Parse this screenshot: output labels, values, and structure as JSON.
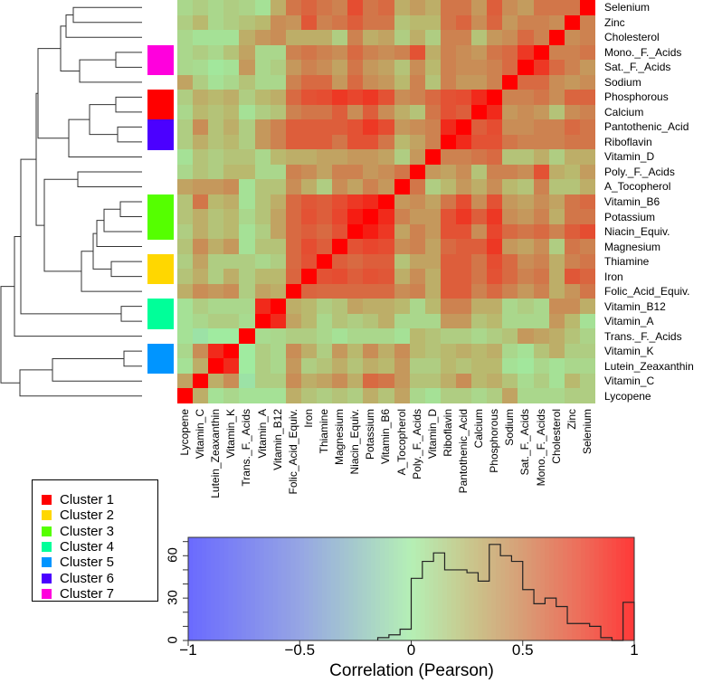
{
  "chart_data": {
    "type": "heatmap",
    "title": "",
    "row_labels": [
      "Selenium",
      "Zinc",
      "Cholesterol",
      "Mono._F._Acids",
      "Sat._F._Acids",
      "Sodium",
      "Phosphorous",
      "Calcium",
      "Pantothenic_Acid",
      "Riboflavin",
      "Vitamin_D",
      "Poly._F._Acids",
      "A_Tocopherol",
      "Vitamin_B6",
      "Potassium",
      "Niacin_Equiv.",
      "Magnesium",
      "Thiamine",
      "Iron",
      "Folic_Acid_Equiv.",
      "Vitamin_B12",
      "Vitamin_A",
      "Trans._F._Acids",
      "Vitamin_K",
      "Lutein_Zeaxanthin",
      "Vitamin_C",
      "Lycopene"
    ],
    "col_labels": [
      "Lycopene",
      "Vitamin_C",
      "Lutein_Zeaxanthin",
      "Vitamin_K",
      "Trans._F._Acids",
      "Vitamin_A",
      "Vitamin_B12",
      "Folic_Acid_Equiv.",
      "Iron",
      "Thiamine",
      "Magnesium",
      "Niacin_Equiv.",
      "Potassium",
      "Vitamin_B6",
      "A_Tocopherol",
      "Poly._F._Acids",
      "Vitamin_D",
      "Riboflavin",
      "Pantothenic_Acid",
      "Calcium",
      "Phosphorous",
      "Sodium",
      "Sat._F._Acids",
      "Mono._F._Acids",
      "Cholesterol",
      "Zinc",
      "Selenium"
    ],
    "values": [
      [
        0.1,
        0.15,
        0.1,
        0.15,
        0.12,
        0.05,
        0.3,
        0.55,
        0.62,
        0.55,
        0.5,
        0.72,
        0.55,
        0.6,
        0.3,
        0.38,
        0.3,
        0.55,
        0.55,
        0.4,
        0.65,
        0.45,
        0.38,
        0.55,
        0.55,
        0.55,
        1.0
      ],
      [
        0.15,
        0.25,
        0.1,
        0.15,
        0.2,
        0.25,
        0.45,
        0.42,
        0.68,
        0.5,
        0.55,
        0.65,
        0.55,
        0.55,
        0.2,
        0.25,
        0.25,
        0.55,
        0.62,
        0.45,
        0.62,
        0.4,
        0.5,
        0.5,
        0.45,
        1.0,
        0.5
      ],
      [
        0.1,
        0.05,
        0.05,
        0.05,
        0.3,
        0.4,
        0.45,
        0.3,
        0.3,
        0.3,
        0.15,
        0.5,
        0.3,
        0.35,
        0.15,
        0.3,
        0.15,
        0.5,
        0.5,
        0.2,
        0.4,
        0.45,
        0.6,
        0.5,
        1.0,
        0.45,
        0.5
      ],
      [
        0.1,
        0.15,
        0.1,
        0.2,
        0.35,
        0.1,
        0.1,
        0.5,
        0.55,
        0.5,
        0.45,
        0.6,
        0.5,
        0.45,
        0.5,
        0.7,
        0.3,
        0.5,
        0.45,
        0.4,
        0.55,
        0.6,
        0.8,
        1.0,
        0.5,
        0.5,
        0.55
      ],
      [
        0.1,
        0.08,
        0.02,
        0.05,
        0.4,
        0.1,
        0.15,
        0.4,
        0.5,
        0.45,
        0.35,
        0.55,
        0.4,
        0.35,
        0.2,
        0.45,
        0.25,
        0.5,
        0.45,
        0.45,
        0.5,
        0.6,
        1.0,
        0.8,
        0.6,
        0.5,
        0.4
      ],
      [
        0.35,
        0.15,
        0.05,
        0.1,
        0.2,
        0.1,
        0.1,
        0.5,
        0.6,
        0.6,
        0.4,
        0.6,
        0.45,
        0.4,
        0.25,
        0.5,
        0.2,
        0.5,
        0.4,
        0.4,
        0.5,
        1.0,
        0.6,
        0.6,
        0.45,
        0.4,
        0.45
      ],
      [
        0.15,
        0.3,
        0.25,
        0.3,
        0.15,
        0.25,
        0.3,
        0.6,
        0.7,
        0.72,
        0.8,
        0.75,
        0.8,
        0.7,
        0.45,
        0.5,
        0.6,
        0.7,
        0.72,
        0.85,
        1.0,
        0.5,
        0.5,
        0.55,
        0.45,
        0.62,
        0.62
      ],
      [
        0.1,
        0.25,
        0.2,
        0.25,
        0.05,
        0.15,
        0.2,
        0.5,
        0.55,
        0.55,
        0.65,
        0.45,
        0.65,
        0.45,
        0.3,
        0.2,
        0.55,
        0.7,
        0.65,
        1.0,
        0.85,
        0.4,
        0.45,
        0.4,
        0.2,
        0.45,
        0.5
      ],
      [
        0.15,
        0.45,
        0.2,
        0.3,
        0.15,
        0.4,
        0.5,
        0.65,
        0.65,
        0.65,
        0.65,
        0.7,
        0.8,
        0.72,
        0.4,
        0.45,
        0.5,
        0.85,
        1.0,
        0.65,
        0.72,
        0.45,
        0.45,
        0.5,
        0.5,
        0.6,
        0.55
      ],
      [
        0.15,
        0.3,
        0.2,
        0.25,
        0.15,
        0.4,
        0.5,
        0.65,
        0.65,
        0.65,
        0.55,
        0.7,
        0.7,
        0.55,
        0.25,
        0.35,
        0.5,
        1.0,
        0.85,
        0.7,
        0.7,
        0.55,
        0.5,
        0.5,
        0.5,
        0.55,
        0.55
      ],
      [
        0.05,
        0.2,
        0.15,
        0.2,
        0.2,
        0.1,
        0.25,
        0.3,
        0.3,
        0.35,
        0.35,
        0.4,
        0.4,
        0.35,
        0.15,
        0.4,
        1.0,
        0.5,
        0.5,
        0.55,
        0.6,
        0.2,
        0.2,
        0.3,
        0.15,
        0.3,
        0.3
      ],
      [
        0.1,
        0.2,
        0.15,
        0.25,
        0.25,
        0.1,
        0.1,
        0.5,
        0.45,
        0.35,
        0.5,
        0.5,
        0.4,
        0.45,
        0.55,
        1.0,
        0.4,
        0.35,
        0.45,
        0.2,
        0.5,
        0.5,
        0.45,
        0.7,
        0.3,
        0.25,
        0.38
      ],
      [
        0.35,
        0.4,
        0.4,
        0.45,
        0.05,
        0.2,
        0.2,
        0.45,
        0.3,
        0.15,
        0.45,
        0.35,
        0.5,
        0.4,
        1.0,
        0.55,
        0.15,
        0.25,
        0.4,
        0.3,
        0.45,
        0.25,
        0.2,
        0.5,
        0.2,
        0.2,
        0.3
      ],
      [
        0.2,
        0.55,
        0.25,
        0.3,
        0.05,
        0.2,
        0.3,
        0.6,
        0.68,
        0.65,
        0.72,
        0.8,
        0.85,
        1.0,
        0.4,
        0.45,
        0.35,
        0.55,
        0.72,
        0.45,
        0.7,
        0.4,
        0.35,
        0.45,
        0.35,
        0.55,
        0.6
      ],
      [
        0.2,
        0.3,
        0.2,
        0.25,
        0.1,
        0.2,
        0.35,
        0.6,
        0.7,
        0.65,
        0.75,
        0.9,
        1.0,
        0.85,
        0.5,
        0.4,
        0.4,
        0.7,
        0.8,
        0.65,
        0.8,
        0.45,
        0.4,
        0.5,
        0.3,
        0.55,
        0.55
      ],
      [
        0.15,
        0.3,
        0.2,
        0.25,
        0.05,
        0.15,
        0.35,
        0.6,
        0.65,
        0.6,
        0.7,
        1.0,
        0.9,
        0.8,
        0.35,
        0.5,
        0.4,
        0.7,
        0.7,
        0.45,
        0.75,
        0.6,
        0.55,
        0.6,
        0.5,
        0.65,
        0.72
      ],
      [
        0.2,
        0.45,
        0.3,
        0.4,
        0.05,
        0.2,
        0.2,
        0.6,
        0.72,
        0.65,
        1.0,
        0.7,
        0.75,
        0.72,
        0.45,
        0.5,
        0.35,
        0.6,
        0.65,
        0.65,
        0.8,
        0.4,
        0.35,
        0.45,
        0.15,
        0.55,
        0.5
      ],
      [
        0.15,
        0.35,
        0.15,
        0.15,
        0.15,
        0.1,
        0.15,
        0.6,
        0.7,
        1.0,
        0.65,
        0.6,
        0.65,
        0.65,
        0.2,
        0.35,
        0.35,
        0.65,
        0.65,
        0.55,
        0.72,
        0.6,
        0.45,
        0.5,
        0.3,
        0.5,
        0.55
      ],
      [
        0.2,
        0.3,
        0.15,
        0.3,
        0.15,
        0.25,
        0.25,
        0.62,
        1.0,
        0.7,
        0.72,
        0.65,
        0.7,
        0.68,
        0.3,
        0.45,
        0.3,
        0.65,
        0.65,
        0.55,
        0.7,
        0.6,
        0.5,
        0.55,
        0.3,
        0.68,
        0.62
      ],
      [
        0.3,
        0.45,
        0.4,
        0.45,
        0.15,
        0.35,
        0.3,
        1.0,
        0.62,
        0.6,
        0.6,
        0.6,
        0.6,
        0.6,
        0.45,
        0.5,
        0.3,
        0.65,
        0.65,
        0.5,
        0.6,
        0.5,
        0.4,
        0.5,
        0.3,
        0.42,
        0.55
      ],
      [
        0.05,
        0.15,
        0.1,
        0.1,
        0.1,
        0.85,
        1.0,
        0.3,
        0.25,
        0.15,
        0.2,
        0.35,
        0.3,
        0.3,
        0.25,
        0.1,
        0.25,
        0.5,
        0.5,
        0.3,
        0.3,
        0.1,
        0.15,
        0.1,
        0.45,
        0.45,
        0.3
      ],
      [
        0.05,
        0.1,
        0.15,
        0.15,
        0.08,
        1.0,
        0.85,
        0.35,
        0.25,
        0.1,
        0.2,
        0.15,
        0.2,
        0.3,
        0.1,
        0.1,
        0.1,
        0.4,
        0.4,
        0.2,
        0.25,
        0.1,
        0.1,
        0.1,
        0.4,
        0.25,
        0.05
      ],
      [
        0.05,
        -0.05,
        0.0,
        0.0,
        1.0,
        0.08,
        0.1,
        0.15,
        0.15,
        0.1,
        0.05,
        0.1,
        0.1,
        0.1,
        0.05,
        0.25,
        0.2,
        0.15,
        0.15,
        0.1,
        0.15,
        0.2,
        0.4,
        0.35,
        0.3,
        0.2,
        0.12
      ],
      [
        0.1,
        0.45,
        0.85,
        1.0,
        0.0,
        0.15,
        0.1,
        0.45,
        0.3,
        0.15,
        0.4,
        0.25,
        0.45,
        0.3,
        0.45,
        0.25,
        0.2,
        0.25,
        0.3,
        0.25,
        0.3,
        0.1,
        0.05,
        0.2,
        0.3,
        0.15,
        0.15
      ],
      [
        0.05,
        0.3,
        1.0,
        0.85,
        0.0,
        0.15,
        0.1,
        0.4,
        0.15,
        0.2,
        0.3,
        0.2,
        0.3,
        0.25,
        0.4,
        0.15,
        0.15,
        0.25,
        0.2,
        0.25,
        0.25,
        0.05,
        0.02,
        0.1,
        0.05,
        0.1,
        0.1
      ],
      [
        0.35,
        1.0,
        0.3,
        0.45,
        -0.05,
        0.15,
        0.15,
        0.45,
        0.3,
        0.35,
        0.45,
        0.3,
        0.6,
        0.55,
        0.4,
        0.2,
        0.2,
        0.3,
        0.45,
        0.25,
        0.3,
        0.2,
        0.08,
        0.15,
        0.05,
        0.25,
        0.15
      ],
      [
        1.0,
        0.3,
        0.05,
        0.1,
        0.05,
        0.05,
        0.05,
        0.3,
        0.2,
        0.15,
        0.2,
        0.15,
        0.3,
        0.2,
        0.35,
        0.1,
        0.05,
        0.15,
        0.15,
        0.1,
        0.15,
        0.35,
        0.1,
        0.1,
        0.1,
        0.15,
        0.15
      ]
    ],
    "row_clusters": [
      null,
      null,
      null,
      "Cluster 7",
      "Cluster 7",
      null,
      "Cluster 1",
      "Cluster 1",
      "Cluster 6",
      "Cluster 6",
      null,
      null,
      null,
      "Cluster 3",
      "Cluster 3",
      "Cluster 3",
      null,
      "Cluster 2",
      "Cluster 2",
      null,
      "Cluster 4",
      "Cluster 4",
      null,
      "Cluster 5",
      "Cluster 5",
      null,
      null
    ],
    "legend": [
      {
        "label": "Cluster 1",
        "color": "#ff0000"
      },
      {
        "label": "Cluster 2",
        "color": "#ffd700"
      },
      {
        "label": "Cluster 3",
        "color": "#55ff00"
      },
      {
        "label": "Cluster 4",
        "color": "#00ff99"
      },
      {
        "label": "Cluster 5",
        "color": "#0095ff"
      },
      {
        "label": "Cluster 6",
        "color": "#4b00ff"
      },
      {
        "label": "Cluster 7",
        "color": "#ff00dd"
      }
    ],
    "color_key": {
      "type": "histogram",
      "xlabel": "Correlation (Pearson)",
      "xlim": [
        -1,
        1
      ],
      "ylim": [
        0,
        73
      ],
      "x_ticks": [
        -1,
        -0.5,
        0,
        0.5,
        1
      ],
      "x_tick_labels": [
        "−1",
        "−0.5",
        "0",
        "0.5",
        "1"
      ],
      "y_ticks": [
        0,
        10,
        20,
        30,
        40,
        50,
        60,
        70
      ],
      "y_tick_labels": [
        "0",
        "30",
        "60"
      ],
      "bin_edges": [
        -0.15,
        -0.1,
        -0.05,
        0,
        0.05,
        0.1,
        0.15,
        0.2,
        0.25,
        0.3,
        0.35,
        0.4,
        0.45,
        0.5,
        0.55,
        0.6,
        0.65,
        0.7,
        0.75,
        0.8,
        0.85,
        0.9,
        0.95,
        1.0
      ],
      "counts": [
        2,
        4,
        8,
        44,
        56,
        62,
        50,
        50,
        48,
        42,
        68,
        60,
        56,
        36,
        26,
        30,
        24,
        12,
        12,
        10,
        2,
        0,
        27
      ]
    }
  }
}
